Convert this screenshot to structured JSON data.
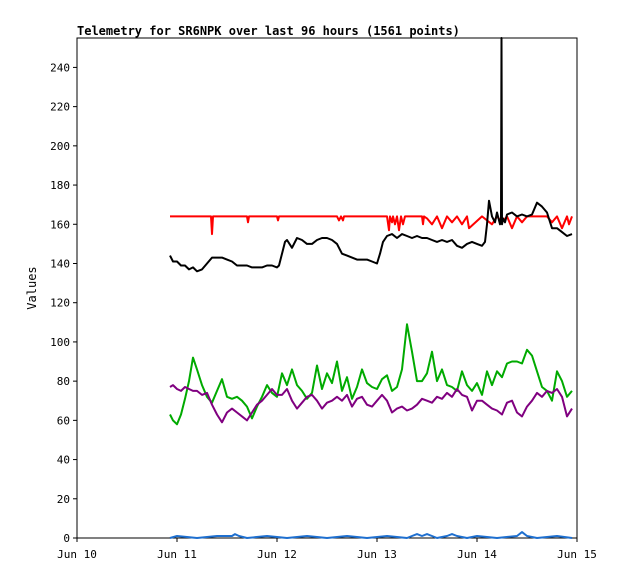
{
  "chart_data": {
    "type": "line",
    "title": "Telemetry for SR6NPK over last 96 hours (1561 points)",
    "xlabel": "",
    "ylabel": "Values",
    "x_ticks": [
      "Jun 10",
      "Jun 11",
      "Jun 12",
      "Jun 13",
      "Jun 14",
      "Jun 15"
    ],
    "y_ticks": [
      0,
      20,
      40,
      60,
      80,
      100,
      120,
      140,
      160,
      180,
      200,
      220,
      240
    ],
    "xlim_days": [
      10,
      15
    ],
    "ylim": [
      0,
      255
    ],
    "grid": false,
    "legend": "none",
    "series": [
      {
        "color": "#ff0000",
        "x": [
          10.93,
          11.2,
          11.34,
          11.35,
          11.36,
          11.6,
          11.7,
          11.71,
          11.72,
          11.9,
          12.0,
          12.01,
          12.02,
          12.3,
          12.6,
          12.62,
          12.64,
          12.66,
          12.67,
          12.9,
          13.1,
          13.12,
          13.13,
          13.15,
          13.16,
          13.18,
          13.2,
          13.22,
          13.24,
          13.26,
          13.28,
          13.3,
          13.45,
          13.46,
          13.47,
          13.5,
          13.55,
          13.6,
          13.65,
          13.7,
          13.75,
          13.8,
          13.85,
          13.9,
          13.92,
          14.05,
          14.1,
          14.15,
          14.2,
          14.25,
          14.3,
          14.35,
          14.4,
          14.45,
          14.5,
          14.6,
          14.7,
          14.75,
          14.8,
          14.85,
          14.9,
          14.92,
          14.95
        ],
        "y": [
          164,
          164,
          164,
          155,
          164,
          164,
          164,
          161,
          164,
          164,
          164,
          162,
          164,
          164,
          164,
          162,
          164,
          162,
          164,
          164,
          164,
          157,
          164,
          161,
          164,
          160,
          164,
          157,
          164,
          160,
          164,
          164,
          164,
          160,
          164,
          163,
          160,
          164,
          158,
          164,
          161,
          164,
          160,
          164,
          158,
          164,
          162,
          160,
          164,
          161,
          164,
          158,
          164,
          161,
          164,
          164,
          164,
          161,
          164,
          158,
          164,
          160,
          164
        ]
      },
      {
        "color": "#000000",
        "x": [
          10.93,
          10.96,
          11.0,
          11.04,
          11.08,
          11.12,
          11.16,
          11.2,
          11.25,
          11.3,
          11.35,
          11.4,
          11.45,
          11.5,
          11.55,
          11.6,
          11.65,
          11.7,
          11.75,
          11.8,
          11.85,
          11.9,
          11.95,
          12.0,
          12.02,
          12.05,
          12.08,
          12.1,
          12.15,
          12.2,
          12.25,
          12.3,
          12.35,
          12.4,
          12.45,
          12.5,
          12.55,
          12.6,
          12.65,
          12.7,
          12.75,
          12.8,
          12.85,
          12.9,
          12.95,
          13.0,
          13.03,
          13.06,
          13.1,
          13.15,
          13.2,
          13.25,
          13.3,
          13.35,
          13.4,
          13.45,
          13.5,
          13.55,
          13.6,
          13.65,
          13.7,
          13.75,
          13.8,
          13.85,
          13.9,
          13.95,
          14.0,
          14.05,
          14.08,
          14.1,
          14.12,
          14.15,
          14.18,
          14.2,
          14.23,
          14.24,
          14.245,
          14.25,
          14.26,
          14.28,
          14.3,
          14.35,
          14.4,
          14.45,
          14.5,
          14.55,
          14.6,
          14.65,
          14.7,
          14.75,
          14.8,
          14.85,
          14.9,
          14.95
        ],
        "y": [
          144,
          141,
          141,
          139,
          139,
          137,
          138,
          136,
          137,
          140,
          143,
          143,
          143,
          142,
          141,
          139,
          139,
          139,
          138,
          138,
          138,
          139,
          139,
          138,
          139,
          145,
          151,
          152,
          148,
          153,
          152,
          150,
          150,
          152,
          153,
          153,
          152,
          150,
          145,
          144,
          143,
          142,
          142,
          142,
          141,
          140,
          145,
          151,
          154,
          155,
          153,
          155,
          154,
          153,
          154,
          153,
          153,
          152,
          151,
          152,
          151,
          152,
          149,
          148,
          150,
          151,
          150,
          149,
          151,
          160,
          172,
          164,
          161,
          166,
          160,
          163,
          255,
          160,
          163,
          161,
          165,
          166,
          164,
          165,
          164,
          165,
          171,
          169,
          166,
          158,
          158,
          156,
          154,
          155
        ]
      },
      {
        "color": "#00aa00",
        "x": [
          10.93,
          10.96,
          11.0,
          11.04,
          11.08,
          11.12,
          11.16,
          11.2,
          11.25,
          11.3,
          11.35,
          11.4,
          11.45,
          11.5,
          11.55,
          11.6,
          11.65,
          11.7,
          11.75,
          11.8,
          11.85,
          11.9,
          11.95,
          12.0,
          12.05,
          12.1,
          12.15,
          12.2,
          12.25,
          12.3,
          12.35,
          12.4,
          12.45,
          12.5,
          12.55,
          12.6,
          12.65,
          12.7,
          12.75,
          12.8,
          12.85,
          12.9,
          12.95,
          13.0,
          13.05,
          13.1,
          13.15,
          13.2,
          13.25,
          13.3,
          13.35,
          13.4,
          13.45,
          13.5,
          13.55,
          13.6,
          13.65,
          13.7,
          13.75,
          13.8,
          13.85,
          13.9,
          13.95,
          14.0,
          14.05,
          14.1,
          14.15,
          14.2,
          14.25,
          14.3,
          14.35,
          14.4,
          14.45,
          14.5,
          14.55,
          14.6,
          14.65,
          14.7,
          14.75,
          14.8,
          14.85,
          14.9,
          14.95
        ],
        "y": [
          63,
          60,
          58,
          63,
          71,
          80,
          92,
          86,
          78,
          72,
          69,
          75,
          81,
          72,
          71,
          72,
          70,
          67,
          61,
          67,
          72,
          78,
          74,
          72,
          84,
          78,
          86,
          78,
          75,
          71,
          74,
          88,
          76,
          84,
          79,
          90,
          75,
          82,
          71,
          77,
          86,
          79,
          77,
          76,
          81,
          83,
          75,
          77,
          86,
          109,
          95,
          80,
          80,
          84,
          95,
          80,
          86,
          78,
          77,
          75,
          85,
          78,
          75,
          79,
          73,
          85,
          78,
          85,
          82,
          89,
          90,
          90,
          89,
          96,
          93,
          85,
          77,
          75,
          70,
          85,
          80,
          72,
          75
        ]
      },
      {
        "color": "#800080",
        "x": [
          10.93,
          10.96,
          11.0,
          11.04,
          11.08,
          11.12,
          11.16,
          11.2,
          11.25,
          11.3,
          11.35,
          11.4,
          11.45,
          11.5,
          11.55,
          11.6,
          11.65,
          11.7,
          11.75,
          11.8,
          11.85,
          11.9,
          11.95,
          12.0,
          12.05,
          12.1,
          12.15,
          12.2,
          12.25,
          12.3,
          12.35,
          12.4,
          12.45,
          12.5,
          12.55,
          12.6,
          12.65,
          12.7,
          12.75,
          12.8,
          12.85,
          12.9,
          12.95,
          13.0,
          13.05,
          13.1,
          13.15,
          13.2,
          13.25,
          13.3,
          13.35,
          13.4,
          13.45,
          13.5,
          13.55,
          13.6,
          13.65,
          13.7,
          13.75,
          13.8,
          13.85,
          13.9,
          13.95,
          14.0,
          14.05,
          14.1,
          14.15,
          14.2,
          14.25,
          14.3,
          14.35,
          14.4,
          14.45,
          14.5,
          14.55,
          14.6,
          14.65,
          14.7,
          14.75,
          14.8,
          14.85,
          14.9,
          14.95
        ],
        "y": [
          77,
          78,
          76,
          75,
          77,
          76,
          75,
          75,
          73,
          74,
          68,
          63,
          59,
          64,
          66,
          64,
          62,
          60,
          64,
          68,
          70,
          73,
          76,
          73,
          73,
          76,
          70,
          66,
          69,
          72,
          73,
          70,
          66,
          69,
          70,
          72,
          70,
          73,
          67,
          71,
          72,
          68,
          67,
          70,
          73,
          70,
          64,
          66,
          67,
          65,
          66,
          68,
          71,
          70,
          69,
          72,
          71,
          74,
          72,
          76,
          73,
          72,
          65,
          70,
          70,
          68,
          66,
          65,
          63,
          69,
          70,
          64,
          62,
          67,
          70,
          74,
          72,
          75,
          74,
          76,
          72,
          62,
          66
        ]
      },
      {
        "color": "#1e6fcf",
        "x": [
          10.93,
          11.0,
          11.2,
          11.4,
          11.55,
          11.58,
          11.62,
          11.7,
          11.9,
          12.1,
          12.3,
          12.5,
          12.7,
          12.9,
          13.1,
          13.3,
          13.35,
          13.4,
          13.45,
          13.5,
          13.55,
          13.6,
          13.7,
          13.75,
          13.8,
          13.9,
          14.0,
          14.2,
          14.4,
          14.45,
          14.5,
          14.6,
          14.8,
          14.95
        ],
        "y": [
          0,
          1,
          0,
          1,
          1,
          2,
          1,
          0,
          1,
          0,
          1,
          0,
          1,
          0,
          1,
          0,
          1,
          2,
          1,
          2,
          1,
          0,
          1,
          2,
          1,
          0,
          1,
          0,
          1,
          3,
          1,
          0,
          1,
          0
        ]
      }
    ]
  }
}
